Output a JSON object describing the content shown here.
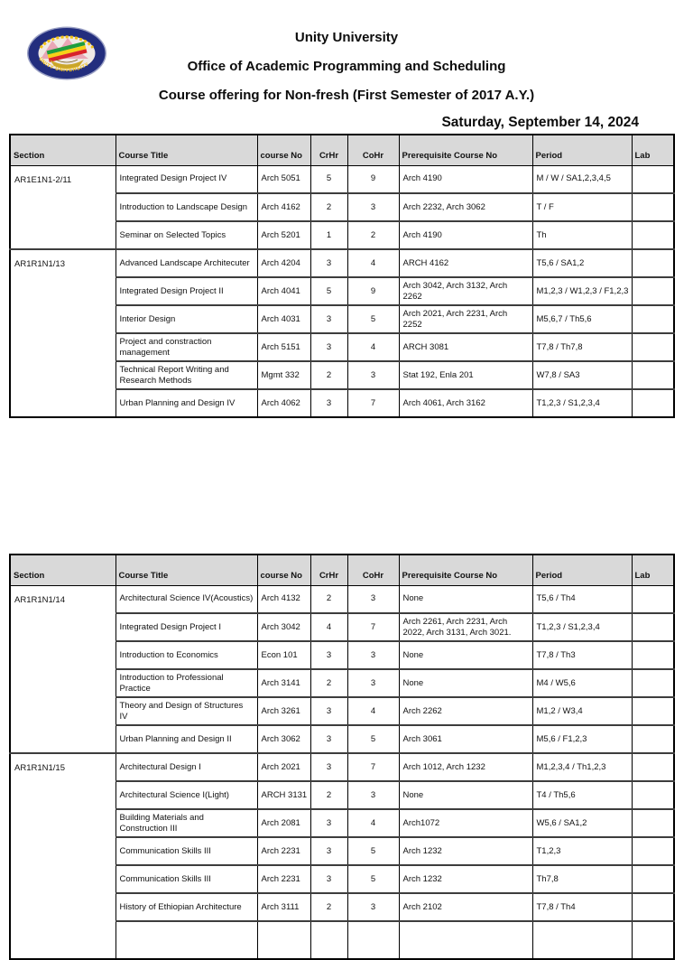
{
  "page": {
    "title_line1": "Unity University",
    "title_line2": "Office of Academic Programming and Scheduling",
    "title_line3": "Course offering for Non-fresh (First Semester of 2017 A.Y.)",
    "date": "Saturday, September 14, 2024",
    "logo_text": "UNITY UNIVERSITY"
  },
  "colors": {
    "header_bg": "#d9d9d9",
    "logo_navy": "#232e7e",
    "logo_yellow": "#f2c113",
    "flag_green": "#1e9e3e",
    "flag_yellow": "#f7d117",
    "flag_red": "#d8232a"
  },
  "columns": [
    {
      "key": "section",
      "label": "Section"
    },
    {
      "key": "title",
      "label": "Course Title"
    },
    {
      "key": "course_no",
      "label": "course No"
    },
    {
      "key": "crhr",
      "label": "CrHr"
    },
    {
      "key": "cohr",
      "label": "CoHr"
    },
    {
      "key": "prereq",
      "label": "Prerequisite Course No"
    },
    {
      "key": "period",
      "label": "Period"
    },
    {
      "key": "lab",
      "label": "Lab"
    }
  ],
  "tables": [
    {
      "groups": [
        {
          "section": "AR1E1N1-2/11",
          "rows": [
            {
              "title": "Integrated Design Project IV",
              "course_no": "Arch 5051",
              "crhr": "5",
              "cohr": "9",
              "prereq": "Arch 4190",
              "period": "M / W / SA1,2,3,4,5",
              "lab": ""
            },
            {
              "title": "Introduction to Landscape Design",
              "course_no": "Arch 4162",
              "crhr": "2",
              "cohr": "3",
              "prereq": "Arch 2232, Arch 3062",
              "period": "T / F",
              "lab": ""
            },
            {
              "title": "Seminar on Selected Topics",
              "course_no": "Arch 5201",
              "crhr": "1",
              "cohr": "2",
              "prereq": "Arch 4190",
              "period": "Th",
              "lab": ""
            }
          ]
        },
        {
          "section": "AR1R1N1/13",
          "rows": [
            {
              "title": "Advanced Landscape Architecuter",
              "course_no": "Arch 4204",
              "crhr": "3",
              "cohr": "4",
              "prereq": "ARCH 4162",
              "period": "T5,6 / SA1,2",
              "lab": ""
            },
            {
              "title": "Integrated Design Project II",
              "course_no": "Arch 4041",
              "crhr": "5",
              "cohr": "9",
              "prereq": "Arch 3042, Arch 3132, Arch 2262",
              "period": "M1,2,3 / W1,2,3 / F1,2,3",
              "lab": ""
            },
            {
              "title": "Interior Design",
              "course_no": "Arch 4031",
              "crhr": "3",
              "cohr": "5",
              "prereq": "Arch 2021, Arch 2231, Arch 2252",
              "period": "M5,6,7 / Th5,6",
              "lab": ""
            },
            {
              "title": "Project and constraction management",
              "course_no": "Arch 5151",
              "crhr": "3",
              "cohr": "4",
              "prereq": "ARCH 3081",
              "period": "T7,8 / Th7,8",
              "lab": ""
            },
            {
              "title": "Technical Report Writing and Research Methods",
              "course_no": "Mgmt 332",
              "crhr": "2",
              "cohr": "3",
              "prereq": "Stat 192, Enla 201",
              "period": "W7,8 / SA3",
              "lab": ""
            },
            {
              "title": "Urban Planning and Design IV",
              "course_no": "Arch 4062",
              "crhr": "3",
              "cohr": "7",
              "prereq": "Arch 4061, Arch 3162",
              "period": "T1,2,3 / S1,2,3,4",
              "lab": ""
            }
          ]
        }
      ]
    },
    {
      "groups": [
        {
          "section": "AR1R1N1/14",
          "rows": [
            {
              "title": "Architectural Science IV(Acoustics)",
              "course_no": "Arch 4132",
              "crhr": "2",
              "cohr": "3",
              "prereq": "None",
              "period": "T5,6 / Th4",
              "lab": ""
            },
            {
              "title": "Integrated Design Project I",
              "course_no": "Arch 3042",
              "crhr": "4",
              "cohr": "7",
              "prereq": "Arch 2261, Arch 2231,  Arch 2022, Arch 3131, Arch 3021.",
              "period": "T1,2,3 / S1,2,3,4",
              "lab": ""
            },
            {
              "title": "Introduction to Economics",
              "course_no": "Econ 101",
              "crhr": "3",
              "cohr": "3",
              "prereq": "None",
              "period": "T7,8 / Th3",
              "lab": ""
            },
            {
              "title": "Introduction to Professional Practice",
              "course_no": "Arch 3141",
              "crhr": "2",
              "cohr": "3",
              "prereq": "None",
              "period": "M4 / W5,6",
              "lab": ""
            },
            {
              "title": "Theory and Design of Structures IV",
              "course_no": "Arch 3261",
              "crhr": "3",
              "cohr": "4",
              "prereq": "Arch 2262",
              "period": "M1,2 / W3,4",
              "lab": ""
            },
            {
              "title": "Urban Planning and Design II",
              "course_no": "Arch 3062",
              "crhr": "3",
              "cohr": "5",
              "prereq": "Arch 3061",
              "period": "M5,6 / F1,2,3",
              "lab": ""
            }
          ]
        },
        {
          "section": "AR1R1N1/15",
          "rows": [
            {
              "title": "Architectural Design I",
              "course_no": "Arch 2021",
              "crhr": "3",
              "cohr": "7",
              "prereq": "Arch 1012, Arch 1232",
              "period": "M1,2,3,4 / Th1,2,3",
              "lab": ""
            },
            {
              "title": "Architectural Science I(Light)",
              "course_no": "ARCH 3131",
              "crhr": "2",
              "cohr": "3",
              "prereq": "None",
              "period": "T4 / Th5,6",
              "lab": ""
            },
            {
              "title": "Building Materials and  Construction III",
              "course_no": "Arch 2081",
              "crhr": "3",
              "cohr": "4",
              "prereq": "Arch1072",
              "period": "W5,6  / SA1,2",
              "lab": ""
            },
            {
              "title": "Communication Skills III",
              "course_no": "Arch 2231",
              "crhr": "3",
              "cohr": "5",
              "prereq": "Arch 1232",
              "period": "T1,2,3",
              "lab": ""
            },
            {
              "title": "Communication Skills III",
              "course_no": "Arch 2231",
              "crhr": "3",
              "cohr": "5",
              "prereq": "Arch 1232",
              "period": "Th7,8",
              "lab": ""
            },
            {
              "title": "History  of Ethiopian Architecture",
              "course_no": "Arch 3111",
              "crhr": "2",
              "cohr": "3",
              "prereq": "Arch 2102",
              "period": "T7,8 / Th4",
              "lab": ""
            },
            {
              "title": "",
              "course_no": "",
              "crhr": "",
              "cohr": "",
              "prereq": "",
              "period": "",
              "lab": "",
              "stub": true
            }
          ]
        }
      ]
    }
  ]
}
